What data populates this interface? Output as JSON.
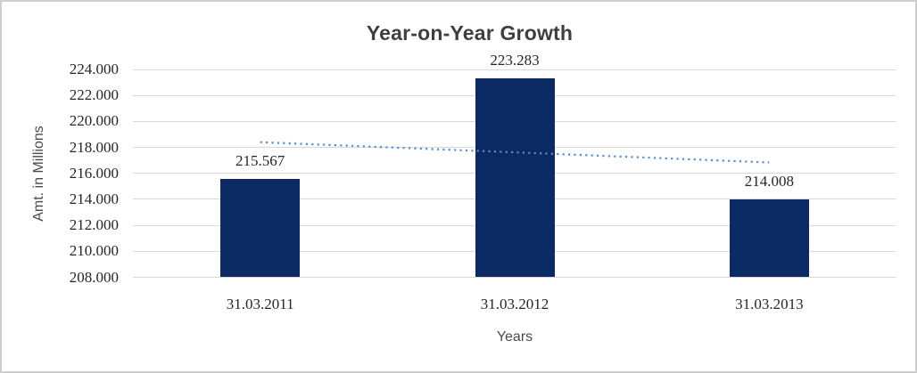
{
  "window": {
    "background": "#FFFFFF",
    "border_color": "#CFCFCF"
  },
  "chart": {
    "title": "Year-on-Year Growth",
    "y_axis_title": "Amt. in Millions",
    "x_axis_title": "Years"
  },
  "chart_data": {
    "type": "bar",
    "title": "Year-on-Year Growth",
    "xlabel": "Years",
    "ylabel": "Amt. in Millions",
    "categories": [
      "31.03.2011",
      "31.03.2012",
      "31.03.2013"
    ],
    "values": [
      215.567,
      223.283,
      214.008
    ],
    "data_labels": [
      "215.567",
      "223.283",
      "214.008"
    ],
    "ylim": [
      208,
      224
    ],
    "ytick_step": 2,
    "ytick_labels": [
      "208.000",
      "210.000",
      "212.000",
      "214.000",
      "216.000",
      "218.000",
      "220.000",
      "222.000",
      "224.000"
    ],
    "grid": true,
    "legend": "none",
    "bar_color": "#0B2963",
    "gridline_color": "#D9D9D9",
    "label_color": "#262626",
    "title_color": "#3F3F3F",
    "axis_title_color": "#4A4A4A",
    "trendline": {
      "type": "linear",
      "style": "dotted",
      "color": "#5A8CCD",
      "start_value": 218.399,
      "end_value": 216.84
    }
  }
}
